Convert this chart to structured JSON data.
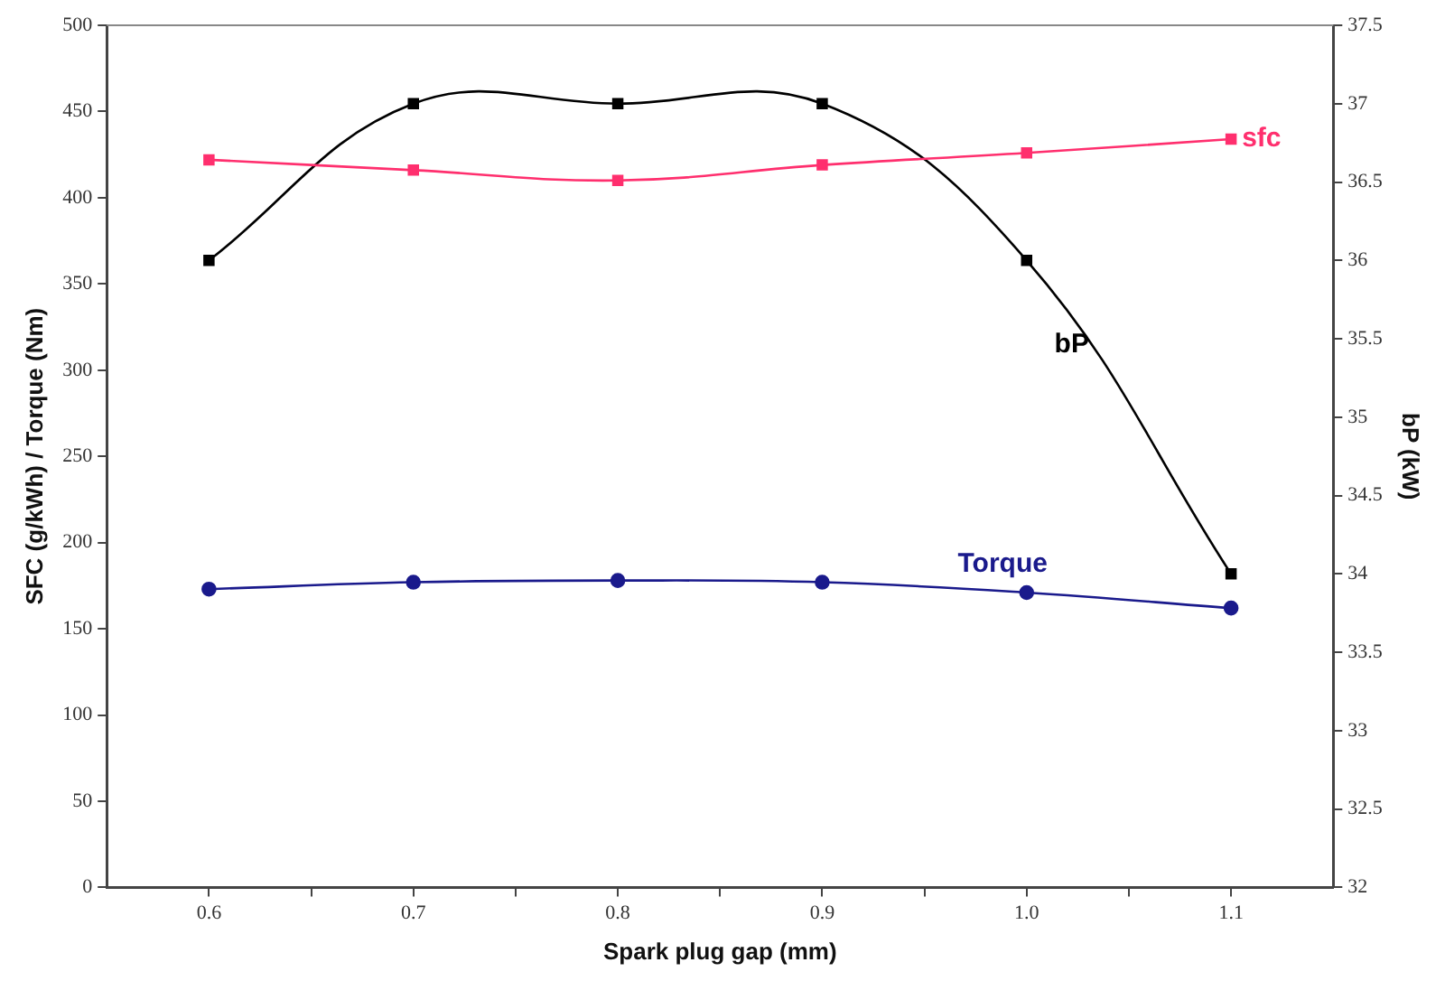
{
  "chart_data": {
    "type": "line",
    "xlabel": "Spark plug gap (mm)",
    "ylabel": "SFC (g/kWh) / Torque (Nm)",
    "y2label": "bP (kW)",
    "x": [
      0.6,
      0.7,
      0.8,
      0.9,
      1.0,
      1.1
    ],
    "xlim": [
      0.55,
      1.15
    ],
    "xticks": [
      0.6,
      {
        "value": 0.65,
        "label": null
      },
      0.7,
      {
        "value": 0.75,
        "label": null
      },
      0.8,
      {
        "value": 0.85,
        "label": null
      },
      0.9,
      {
        "value": 0.95,
        "label": null
      },
      {
        "value": 1.0,
        "label": "1.0"
      },
      {
        "value": 1.05,
        "label": null
      },
      1.1
    ],
    "ylim": [
      0,
      500
    ],
    "yticks": [
      0,
      50,
      100,
      150,
      200,
      250,
      300,
      350,
      400,
      450,
      500
    ],
    "y2lim": [
      32,
      37.5
    ],
    "y2ticks": [
      32,
      32.5,
      33,
      33.5,
      34,
      34.5,
      35,
      35.5,
      36,
      36.5,
      37,
      37.5
    ],
    "grid": false,
    "legend": false,
    "series": [
      {
        "name": "sfc",
        "color": "#ff2f6e",
        "marker": "square",
        "values": [
          422,
          416,
          410,
          419,
          426,
          434
        ]
      },
      {
        "name": "bP",
        "color": "#000000",
        "marker": "square",
        "axis": "y2",
        "values": [
          36.0,
          37.0,
          37.0,
          37.0,
          36.0,
          34.0
        ]
      },
      {
        "name": "Torque",
        "color": "#1a1a8c",
        "marker": "circle",
        "values": [
          173,
          177,
          178,
          177,
          171,
          162
        ]
      }
    ]
  }
}
